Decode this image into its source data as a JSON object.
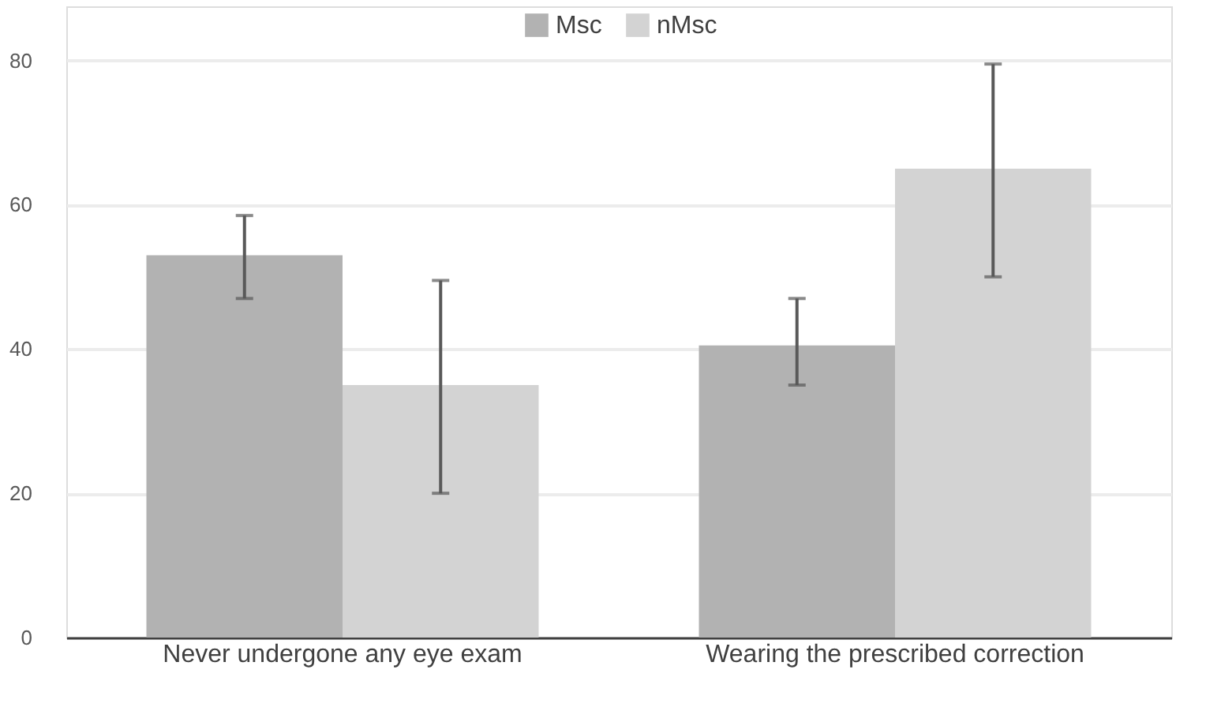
{
  "chart_data": {
    "type": "bar",
    "categories": [
      "Never undergone any eye exam",
      "Wearing the prescribed correction"
    ],
    "series": [
      {
        "name": "Msc",
        "color": "#b2b2b2",
        "values": [
          53,
          40.5
        ],
        "errors": [
          [
            47,
            58.5
          ],
          [
            35,
            47
          ]
        ]
      },
      {
        "name": "nMsc",
        "color": "#d3d3d3",
        "values": [
          35,
          65
        ],
        "errors": [
          [
            20,
            49.5
          ],
          [
            50,
            79.5
          ]
        ]
      }
    ],
    "ylim": [
      0,
      87.5
    ],
    "yticks": [
      0,
      20,
      40,
      60,
      80
    ],
    "grid": "y",
    "legend": "top"
  }
}
